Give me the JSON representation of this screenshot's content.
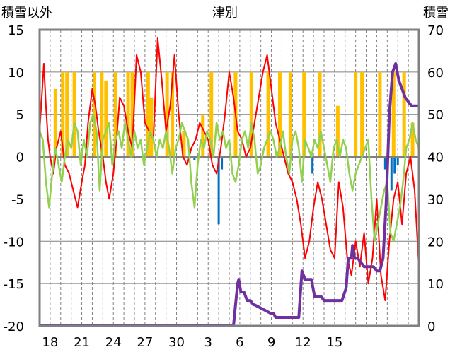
{
  "chart_data": {
    "type": "line",
    "title": "津別",
    "left_axis_label": "積雪以外",
    "right_axis_label": "積雪",
    "left_ylim": [
      -20,
      15
    ],
    "left_yticks": [
      15,
      10,
      5,
      0,
      -5,
      -10,
      -15,
      -20
    ],
    "right_ylim": [
      0,
      70
    ],
    "right_yticks": [
      70,
      60,
      50,
      40,
      30,
      20,
      10,
      0
    ],
    "x_tick_labels": [
      "18",
      "21",
      "24",
      "27",
      "30",
      "3",
      "6",
      "9",
      "12",
      "15"
    ],
    "grid": true,
    "colors": {
      "temp_max": "#ff0000",
      "temp_diff": "#92d050",
      "sunshine": "#ffc000",
      "precip": "#0070c0",
      "snow": "#7030a0",
      "zero_line": "#808080",
      "frame": "#808080",
      "grid": "#808080"
    },
    "series": [
      {
        "key": "temp_max",
        "axis": "left",
        "x": [
          0.0,
          0.2,
          0.4,
          0.6,
          0.8,
          1.0,
          1.3,
          1.6,
          2.0,
          2.4,
          2.8,
          3.2,
          3.6,
          4.0,
          4.3,
          4.6,
          5.0,
          5.3,
          5.6,
          6.0,
          6.3,
          6.6,
          7.0,
          7.3,
          7.6,
          8.0,
          8.4,
          8.8,
          9.2,
          9.6,
          10.0,
          10.4,
          10.8,
          11.2,
          11.6,
          12.0,
          12.4,
          12.8,
          13.2,
          13.6,
          14.0,
          14.4,
          14.8,
          15.2,
          15.6,
          16.0,
          16.4,
          16.8,
          17.2,
          17.6,
          18.0,
          18.4,
          18.8,
          19.2,
          19.6,
          20.0,
          20.4,
          20.8,
          21.2,
          21.6,
          22.0,
          22.4,
          22.8,
          23.2,
          23.6,
          24.0,
          24.4,
          24.8,
          25.2,
          25.6,
          26.0,
          26.4,
          26.8,
          27.2,
          27.6,
          28.0,
          28.4,
          28.8,
          29.2,
          29.6,
          30.0,
          30.4,
          30.8,
          31.2,
          31.6,
          32.0,
          32.4,
          32.8,
          33.2,
          33.6,
          34.0,
          34.4,
          34.8,
          35.2,
          35.6,
          36.0
        ],
        "y": [
          3,
          7,
          11,
          6,
          2,
          0,
          -2,
          1,
          3,
          -1,
          -2,
          -4,
          -6,
          -3,
          -1,
          4,
          8,
          6,
          3,
          0,
          -3,
          -5,
          -2,
          2,
          7,
          6,
          3,
          1,
          12,
          10,
          4,
          3,
          2,
          14,
          9,
          3,
          6,
          12,
          5,
          0,
          -1,
          1,
          2,
          4,
          3,
          2,
          -1,
          -2,
          1,
          5,
          10,
          7,
          3,
          2,
          0,
          1,
          4,
          7,
          10,
          12,
          8,
          4,
          2,
          0,
          -2,
          -3,
          -5,
          -8,
          -12,
          -10,
          -6,
          -3,
          -5,
          -8,
          -11,
          -12,
          -3,
          -6,
          -12,
          -14,
          -10,
          -13,
          -9,
          -15,
          -12,
          -5,
          -14,
          -17,
          -10,
          -5,
          -3,
          -8,
          -2,
          0,
          -4,
          -13
        ]
      },
      {
        "key": "temp_diff",
        "axis": "left",
        "x": [
          0.0,
          0.3,
          0.6,
          0.9,
          1.2,
          1.5,
          1.8,
          2.1,
          2.4,
          2.7,
          3.0,
          3.3,
          3.6,
          3.9,
          4.2,
          4.5,
          4.8,
          5.1,
          5.4,
          5.7,
          6.0,
          6.3,
          6.6,
          6.9,
          7.2,
          7.5,
          7.8,
          8.1,
          8.4,
          8.7,
          9.0,
          9.3,
          9.6,
          9.9,
          10.2,
          10.5,
          10.8,
          11.1,
          11.4,
          11.7,
          12.0,
          12.3,
          12.6,
          12.9,
          13.2,
          13.5,
          13.8,
          14.1,
          14.4,
          14.7,
          15.0,
          15.3,
          15.6,
          15.9,
          16.2,
          16.5,
          16.8,
          17.1,
          17.4,
          17.7,
          18.0,
          18.3,
          18.6,
          18.9,
          19.2,
          19.5,
          19.8,
          20.1,
          20.4,
          20.7,
          21.0,
          21.3,
          21.6,
          21.9,
          22.2,
          22.5,
          22.8,
          23.1,
          23.4,
          23.7,
          24.0,
          24.3,
          24.6,
          24.9,
          25.2,
          25.5,
          25.8,
          26.1,
          26.4,
          26.7,
          27.0,
          27.3,
          27.6,
          27.9,
          28.2,
          28.5,
          28.8,
          29.1,
          29.4,
          29.7,
          30.0,
          30.3,
          30.6,
          30.9,
          31.2,
          31.5,
          31.8,
          32.1,
          32.4,
          32.7,
          33.0,
          33.3,
          33.6,
          33.9,
          34.2,
          34.5,
          34.8,
          35.1,
          35.4,
          35.7,
          36.0
        ],
        "y": [
          3,
          2,
          -3,
          -6,
          -2,
          1,
          -1,
          -3,
          0,
          2,
          1,
          4,
          3,
          -1,
          2,
          0,
          4,
          5,
          3,
          -4,
          2,
          3,
          4,
          -1,
          2,
          3,
          1,
          4,
          2,
          0,
          3,
          1,
          2,
          -1,
          1,
          3,
          2,
          0,
          2,
          1,
          3,
          1,
          -2,
          1,
          2,
          4,
          3,
          2,
          -3,
          -6,
          -1,
          2,
          1,
          3,
          2,
          0,
          4,
          2,
          3,
          1,
          2,
          -2,
          -3,
          -1,
          2,
          3,
          1,
          4,
          2,
          -2,
          -1,
          1,
          2,
          3,
          2,
          0,
          1,
          3,
          0,
          -2,
          2,
          3,
          1,
          -3,
          2,
          1,
          0,
          2,
          1,
          3,
          1,
          -1,
          -3,
          1,
          2,
          0,
          2,
          1,
          -2,
          -4,
          -2,
          -1,
          0,
          1,
          2,
          -5,
          -10,
          -8,
          -6,
          -4,
          -3,
          -9,
          -10,
          -8,
          -6,
          -3,
          1,
          2,
          4,
          2,
          1
        ]
      },
      {
        "key": "snow",
        "axis": "right",
        "x": [
          0.0,
          18.4,
          18.6,
          18.8,
          18.9,
          19.1,
          19.4,
          19.7,
          20.0,
          20.3,
          20.4,
          21.9,
          22.2,
          22.4,
          24.6,
          24.9,
          25.2,
          25.5,
          25.8,
          26.1,
          26.4,
          26.7,
          27.0,
          27.2,
          27.5,
          27.7,
          28.2,
          28.7,
          29.1,
          29.3,
          29.5,
          29.6,
          29.7,
          29.9,
          30.2,
          30.5,
          30.8,
          31.1,
          31.4,
          31.7,
          32.0,
          32.3,
          32.6,
          32.9,
          33.2,
          33.5,
          33.8,
          34.1,
          34.4,
          34.7,
          35.0,
          35.3,
          35.6,
          35.9,
          36.0
        ],
        "y": [
          0,
          0,
          5,
          10,
          11,
          8,
          8,
          6,
          6,
          5,
          5,
          3,
          3,
          2,
          2,
          13,
          11,
          11,
          11,
          7,
          7,
          7,
          6,
          6,
          6,
          6,
          6,
          6,
          9,
          16,
          16,
          16,
          19,
          16,
          16,
          15,
          14,
          14,
          14,
          14,
          13,
          13,
          16,
          29,
          50,
          60,
          62,
          58,
          56,
          54,
          53,
          52,
          52,
          52,
          52
        ]
      }
    ],
    "bars_sunshine": [
      {
        "x": 1.5,
        "y": 8
      },
      {
        "x": 2.2,
        "y": 10
      },
      {
        "x": 2.6,
        "y": 10
      },
      {
        "x": 3.3,
        "y": 10
      },
      {
        "x": 5.2,
        "y": 10
      },
      {
        "x": 5.9,
        "y": 10
      },
      {
        "x": 6.3,
        "y": 9
      },
      {
        "x": 7.2,
        "y": 10
      },
      {
        "x": 8.4,
        "y": 10
      },
      {
        "x": 8.8,
        "y": 10
      },
      {
        "x": 10.3,
        "y": 10
      },
      {
        "x": 10.6,
        "y": 7
      },
      {
        "x": 12.1,
        "y": 10
      },
      {
        "x": 12.6,
        "y": 10
      },
      {
        "x": 13.7,
        "y": 3
      },
      {
        "x": 15.5,
        "y": 5
      },
      {
        "x": 16.3,
        "y": 10
      },
      {
        "x": 18.6,
        "y": 10
      },
      {
        "x": 20.1,
        "y": 10
      },
      {
        "x": 21.7,
        "y": 10
      },
      {
        "x": 22.8,
        "y": 10
      },
      {
        "x": 23.8,
        "y": 10
      },
      {
        "x": 25.1,
        "y": 10
      },
      {
        "x": 26.6,
        "y": 10
      },
      {
        "x": 28.3,
        "y": 6
      },
      {
        "x": 30.0,
        "y": 10
      },
      {
        "x": 30.6,
        "y": 10
      },
      {
        "x": 32.3,
        "y": 10
      },
      {
        "x": 33.6,
        "y": 10
      },
      {
        "x": 34.6,
        "y": 10
      },
      {
        "x": 35.4,
        "y": 4
      }
    ],
    "bars_precip": [
      {
        "x": 14.2,
        "y": -0.5
      },
      {
        "x": 14.7,
        "y": -0.4
      },
      {
        "x": 17.0,
        "y": -8.0
      },
      {
        "x": 17.3,
        "y": -1.5
      },
      {
        "x": 25.9,
        "y": -2.0
      },
      {
        "x": 32.8,
        "y": -1.5
      },
      {
        "x": 33.4,
        "y": -4.0
      },
      {
        "x": 33.7,
        "y": -2.0
      },
      {
        "x": 34.0,
        "y": -1.0
      }
    ]
  }
}
